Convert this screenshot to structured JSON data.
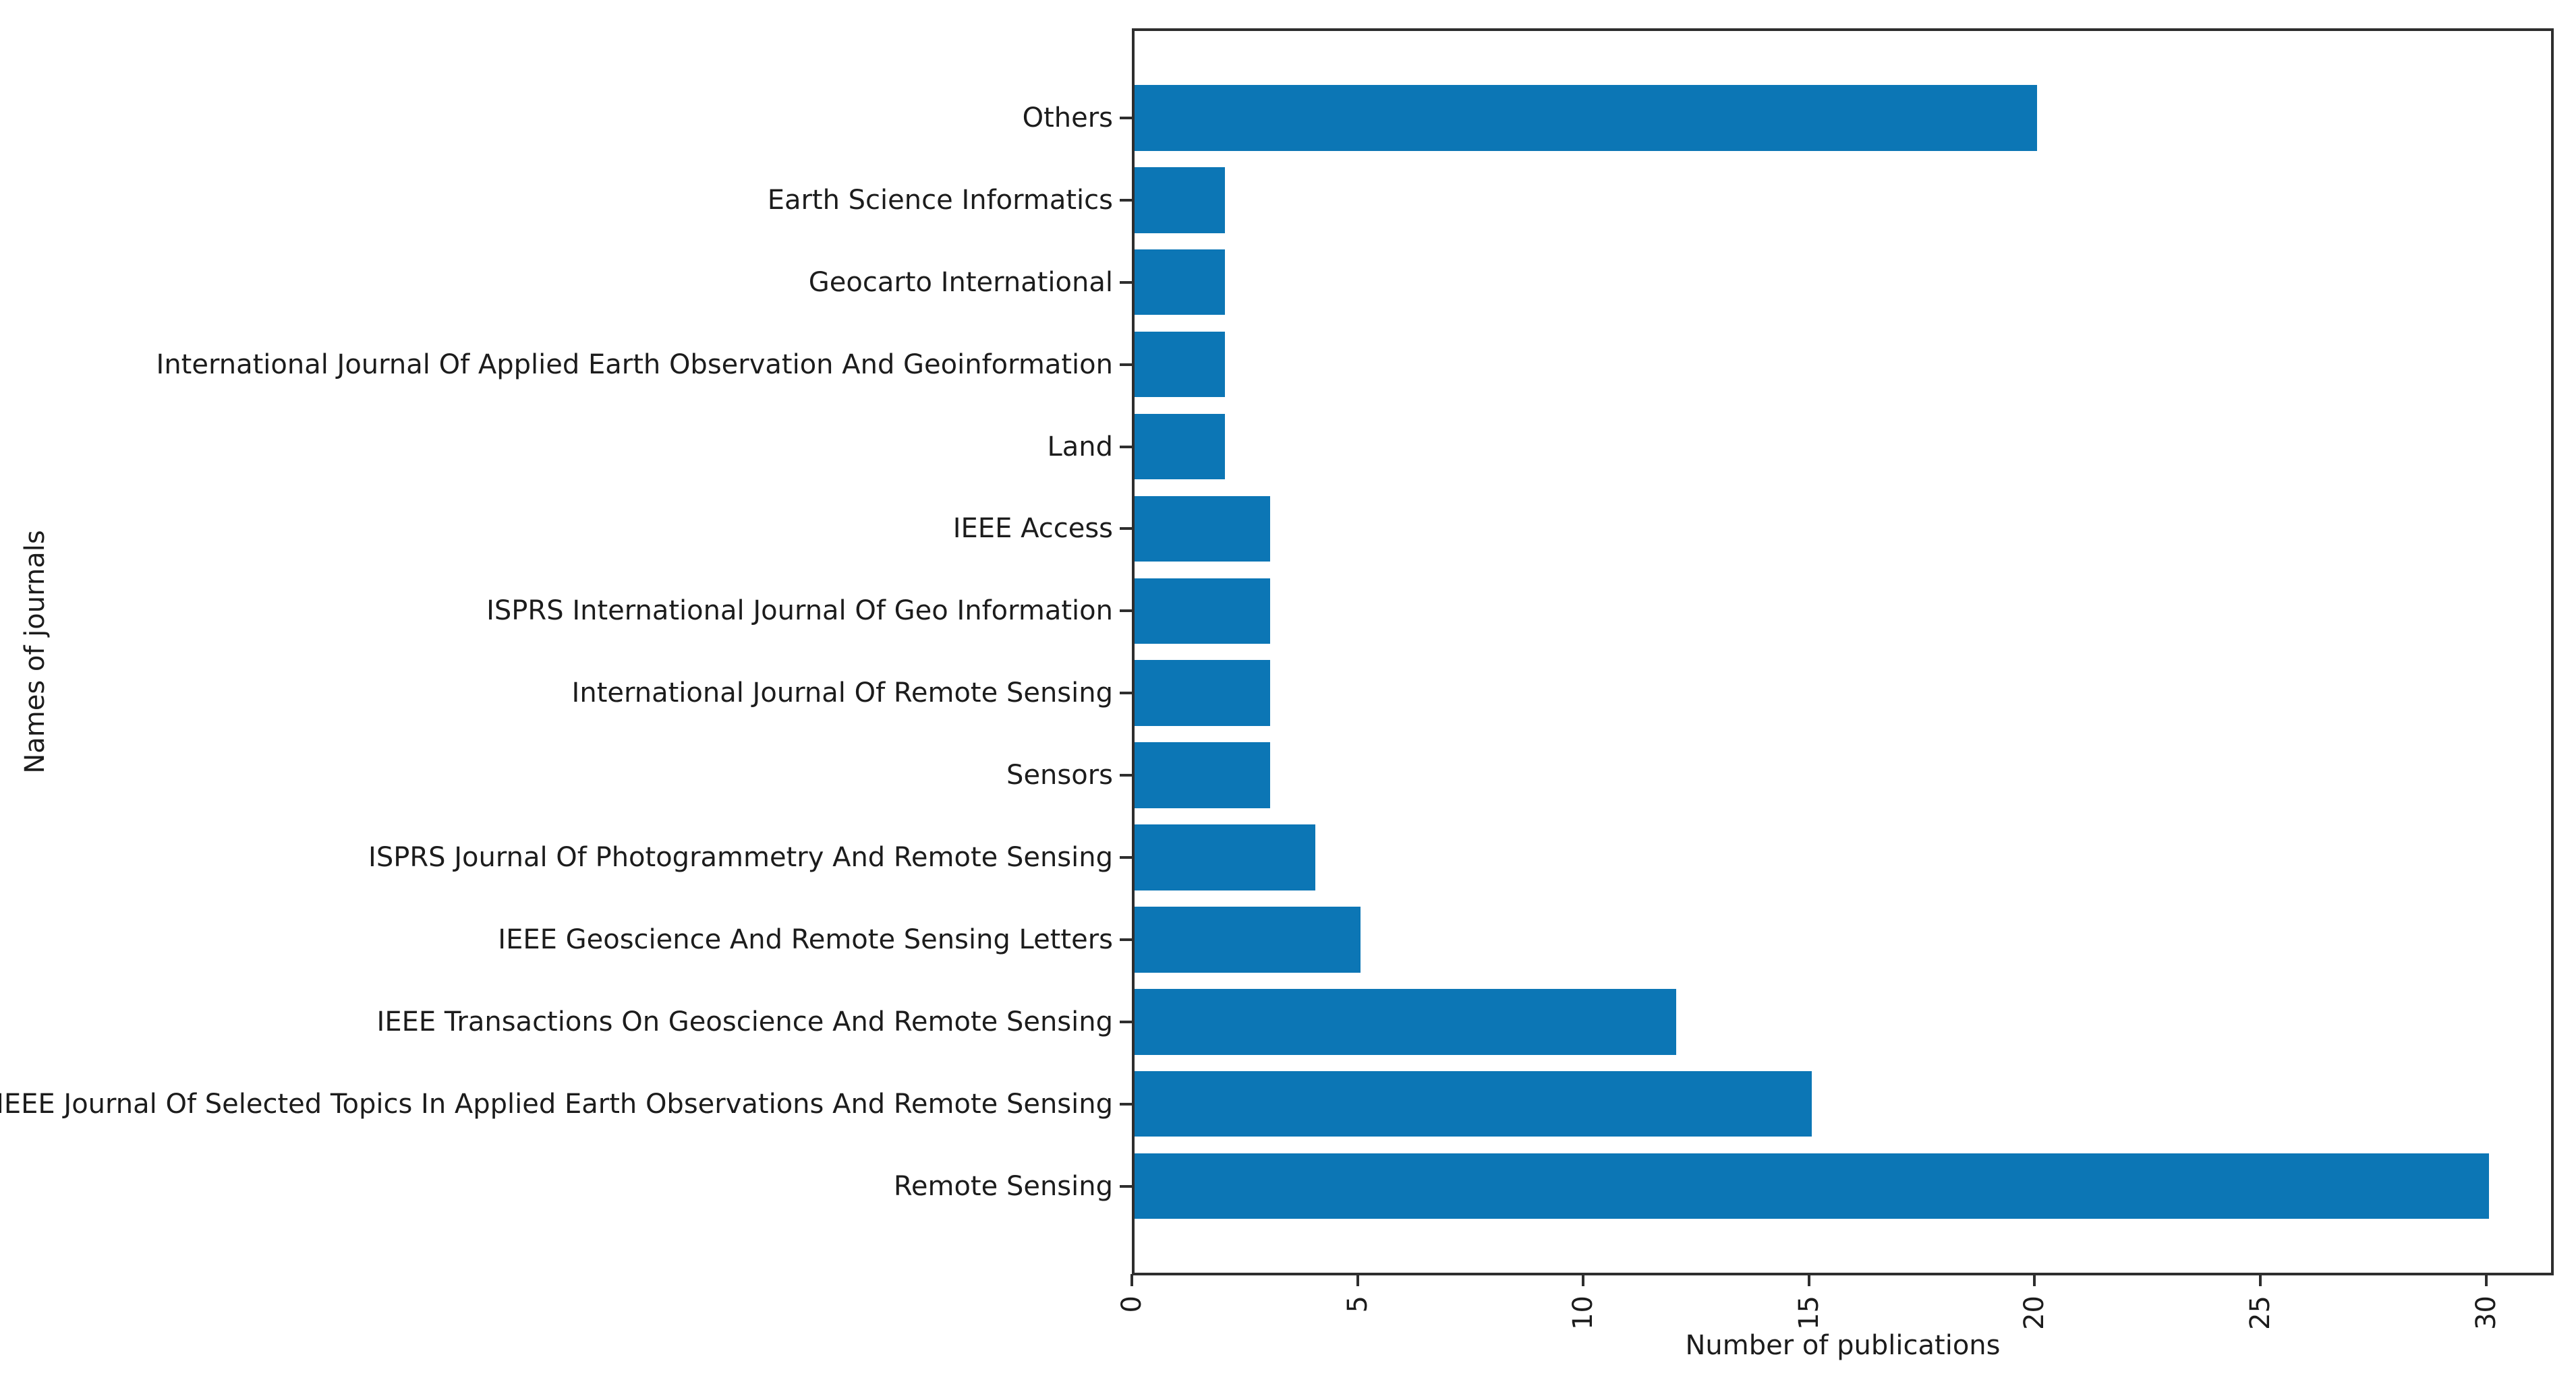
{
  "chart_data": {
    "type": "bar",
    "orientation": "horizontal",
    "title": "",
    "xlabel": "Number of publications",
    "ylabel": "Names of journals",
    "categories_top_to_bottom": [
      "Others",
      "Earth Science Informatics",
      "Geocarto International",
      "International Journal Of Applied Earth Observation And Geoinformation",
      "Land",
      "IEEE Access",
      "ISPRS International Journal Of Geo Information",
      "International Journal Of Remote Sensing",
      "Sensors",
      "ISPRS Journal Of Photogrammetry And Remote Sensing",
      "IEEE Geoscience And Remote Sensing Letters",
      "IEEE Transactions On Geoscience And Remote Sensing",
      "IEEE Journal Of Selected Topics In Applied Earth Observations And Remote Sensing",
      "Remote Sensing"
    ],
    "values_top_to_bottom": [
      20,
      2,
      2,
      2,
      2,
      3,
      3,
      3,
      3,
      4,
      5,
      12,
      15,
      30
    ],
    "xticks": [
      0,
      5,
      10,
      15,
      20,
      25,
      30
    ],
    "xtick_labels": [
      "0",
      "5",
      "10",
      "15",
      "20",
      "25",
      "30"
    ],
    "xlim": [
      0,
      31.5
    ],
    "grid": false,
    "legend": "none",
    "bar_color": "#0c76b5",
    "spine_color": "#2e2e2e",
    "tick_color": "#2e2e2e",
    "text_color": "#1c1c1c",
    "background_color": "#ffffff"
  }
}
